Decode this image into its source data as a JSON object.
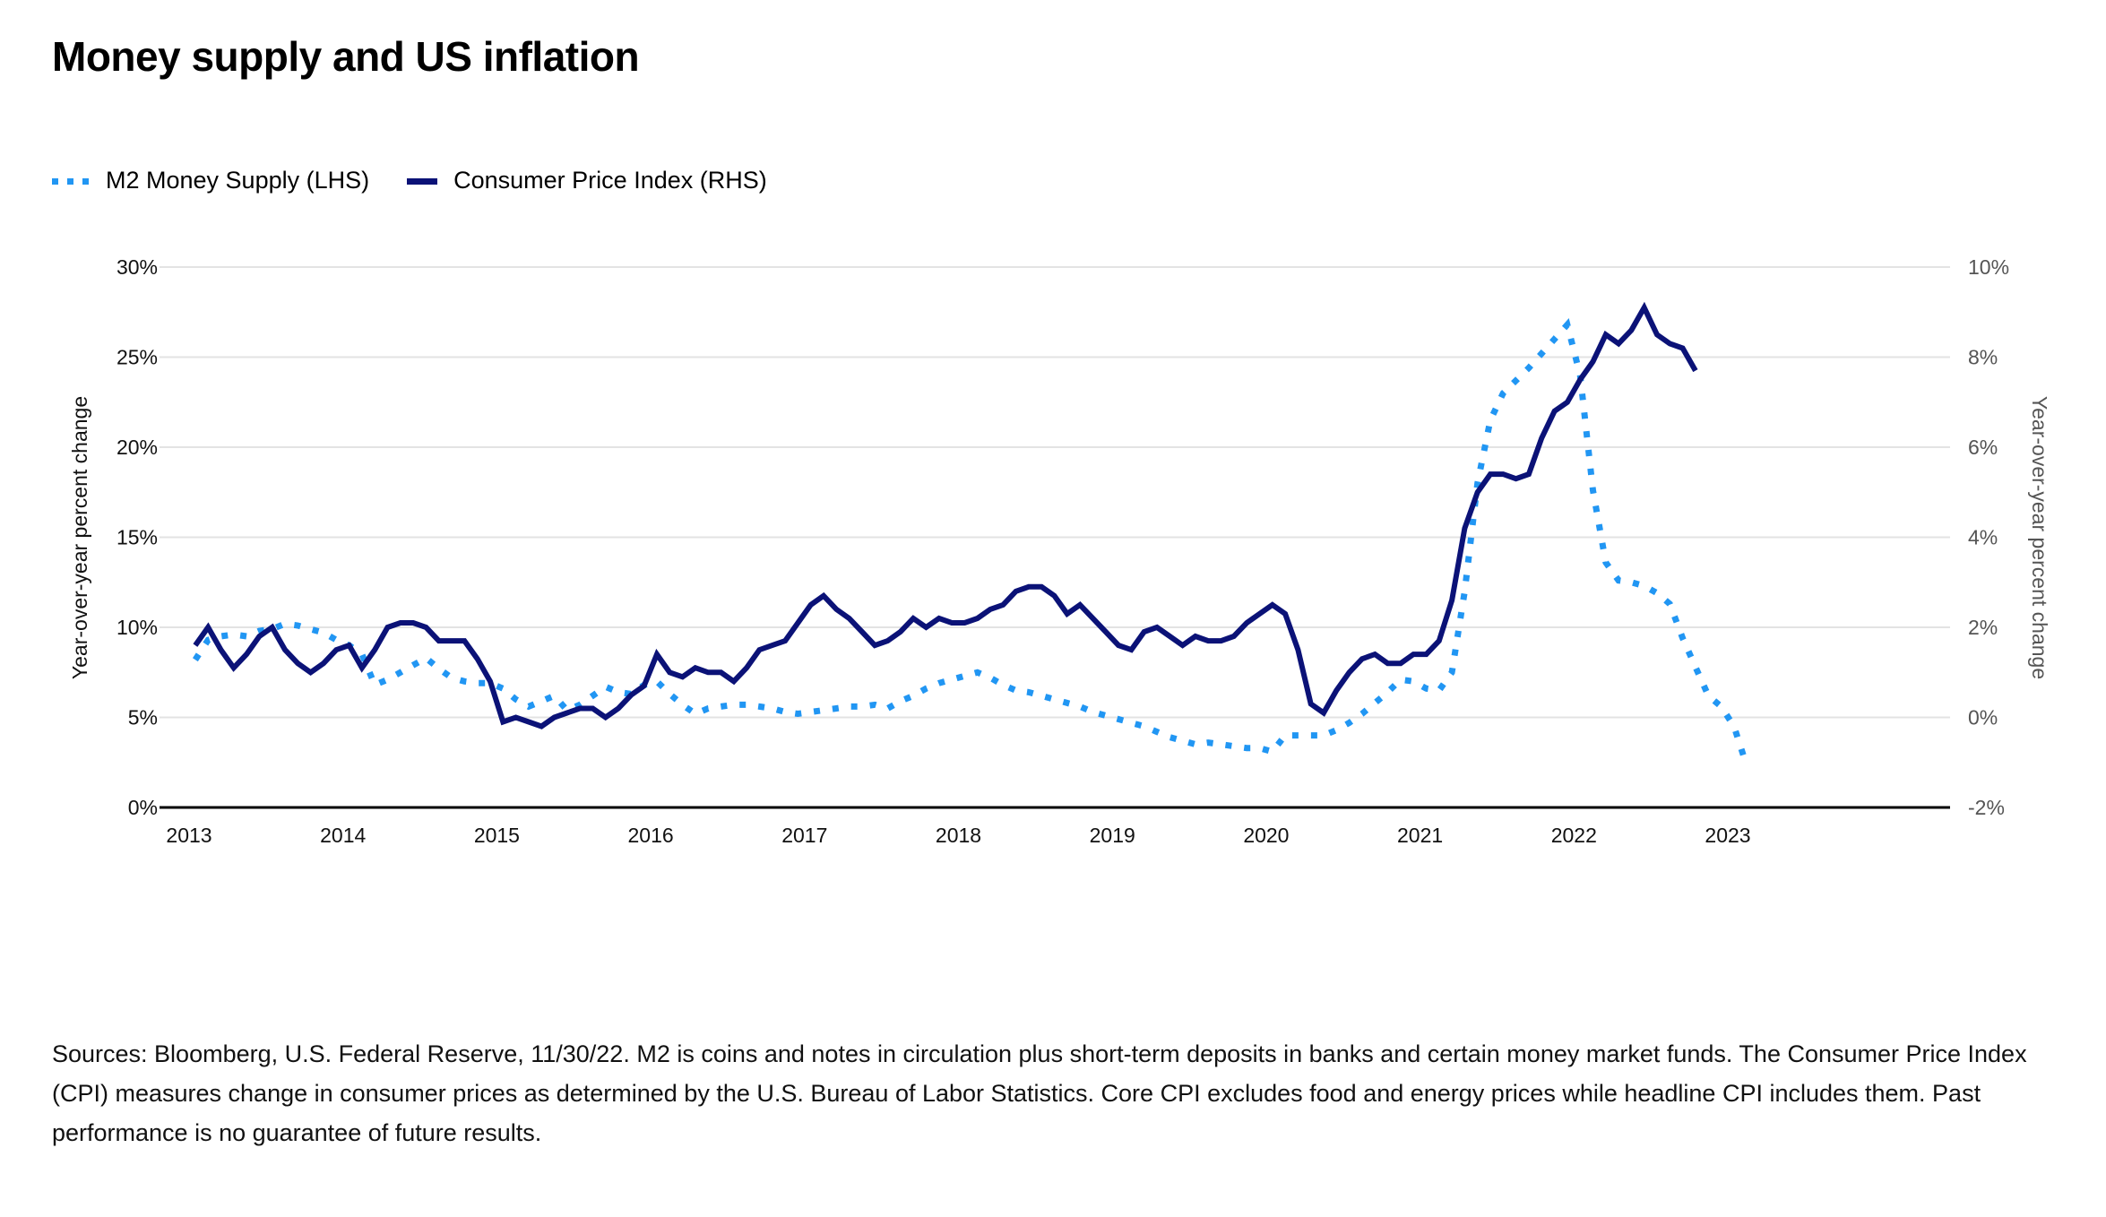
{
  "chart_data": {
    "type": "line",
    "title": "Money supply and US inflation",
    "legend_position": "top-left",
    "x_start": "2013-01",
    "x_frequency": "monthly",
    "x_ticks": [
      "2013",
      "2014",
      "2015",
      "2016",
      "2017",
      "2018",
      "2019",
      "2020",
      "2021",
      "2022",
      "2023"
    ],
    "x_range": [
      2013.0,
      2024.4
    ],
    "y_left": {
      "label": "Year-over-year percent change",
      "ticks": [
        "0%",
        "5%",
        "10%",
        "15%",
        "20%",
        "25%",
        "30%"
      ],
      "range": [
        0,
        30
      ]
    },
    "y_right": {
      "label": "Year-over-year percent change",
      "ticks": [
        "-2%",
        "0%",
        "2%",
        "4%",
        "6%",
        "8%",
        "10%"
      ],
      "range": [
        -2,
        10
      ]
    },
    "grid": true,
    "series": [
      {
        "name": "M2 Money Supply (LHS)",
        "axis": "left",
        "style": "dotted",
        "color": "#2196f3",
        "start": "2013-01",
        "values": [
          8.2,
          9.3,
          9.5,
          9.6,
          9.5,
          9.8,
          9.9,
          10.2,
          10.1,
          9.9,
          9.7,
          9.3,
          9.0,
          8.5,
          6.8,
          7.1,
          7.5,
          7.9,
          8.3,
          7.7,
          7.2,
          7.0,
          6.9,
          6.9,
          6.6,
          6.0,
          5.6,
          5.9,
          6.2,
          5.4,
          5.7,
          6.2,
          6.7,
          6.4,
          6.3,
          6.8,
          7.0,
          6.3,
          5.7,
          5.2,
          5.5,
          5.6,
          5.7,
          5.7,
          5.6,
          5.5,
          5.3,
          5.2,
          5.3,
          5.4,
          5.5,
          5.6,
          5.6,
          5.7,
          5.5,
          5.9,
          6.2,
          6.6,
          6.9,
          7.1,
          7.3,
          7.5,
          7.2,
          6.8,
          6.5,
          6.4,
          6.2,
          6.0,
          5.8,
          5.6,
          5.3,
          5.1,
          4.9,
          4.7,
          4.5,
          4.2,
          3.9,
          3.7,
          3.5,
          3.6,
          3.5,
          3.4,
          3.3,
          3.3,
          3.1,
          4.0,
          4.0,
          4.0,
          4.0,
          4.3,
          4.7,
          5.2,
          5.8,
          6.4,
          7.1,
          7.0,
          6.6,
          6.5,
          7.5,
          12.0,
          18.0,
          21.5,
          23.0,
          23.7,
          24.4,
          25.2,
          26.0,
          26.8,
          24.0,
          17.6,
          13.6,
          12.6,
          12.5,
          12.3,
          11.9,
          11.3,
          9.4,
          7.8,
          6.2,
          5.6,
          4.5,
          2.3
        ]
      },
      {
        "name": "Consumer Price Index (RHS)",
        "axis": "right",
        "style": "solid",
        "color": "#0b1277",
        "start": "2013-01",
        "values": [
          1.6,
          2.0,
          1.5,
          1.1,
          1.4,
          1.8,
          2.0,
          1.5,
          1.2,
          1.0,
          1.2,
          1.5,
          1.6,
          1.1,
          1.5,
          2.0,
          2.1,
          2.1,
          2.0,
          1.7,
          1.7,
          1.7,
          1.3,
          0.8,
          -0.1,
          0.0,
          -0.1,
          -0.2,
          0.0,
          0.1,
          0.2,
          0.2,
          0.0,
          0.2,
          0.5,
          0.7,
          1.4,
          1.0,
          0.9,
          1.1,
          1.0,
          1.0,
          0.8,
          1.1,
          1.5,
          1.6,
          1.7,
          2.1,
          2.5,
          2.7,
          2.4,
          2.2,
          1.9,
          1.6,
          1.7,
          1.9,
          2.2,
          2.0,
          2.2,
          2.1,
          2.1,
          2.2,
          2.4,
          2.5,
          2.8,
          2.9,
          2.9,
          2.7,
          2.3,
          2.5,
          2.2,
          1.9,
          1.6,
          1.5,
          1.9,
          2.0,
          1.8,
          1.6,
          1.8,
          1.7,
          1.7,
          1.8,
          2.1,
          2.3,
          2.5,
          2.3,
          1.5,
          0.3,
          0.1,
          0.6,
          1.0,
          1.3,
          1.4,
          1.2,
          1.2,
          1.4,
          1.4,
          1.7,
          2.6,
          4.2,
          5.0,
          5.4,
          5.4,
          5.3,
          5.4,
          6.2,
          6.8,
          7.0,
          7.5,
          7.9,
          8.5,
          8.3,
          8.6,
          9.1,
          8.5,
          8.3,
          8.2,
          7.7
        ]
      }
    ]
  },
  "legend": {
    "m2_label": "M2 Money Supply (LHS)",
    "cpi_label": "Consumer Price Index (RHS)"
  },
  "title": "Money supply and US inflation",
  "footnote": "Sources: Bloomberg, U.S. Federal Reserve, 11/30/22. M2 is coins and notes in circulation plus short-term deposits in banks and certain money market funds. The Consumer Price Index (CPI) measures change in consumer prices as determined by the U.S. Bureau of Labor Statistics. Core CPI excludes food and energy prices while headline CPI includes them. Past performance is no guarantee of future results."
}
